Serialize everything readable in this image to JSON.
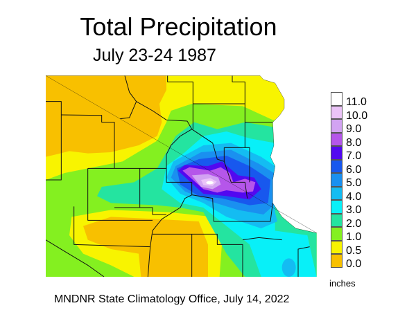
{
  "title": "Total Precipitation",
  "subtitle": "July 23-24 1987",
  "legend": {
    "units": "inches",
    "levels": [
      {
        "label": "11.0",
        "color": "#ffffff"
      },
      {
        "label": "10.0",
        "color": "#ebc3f8"
      },
      {
        "label": "9.0",
        "color": "#d2a3f2"
      },
      {
        "label": "8.0",
        "color": "#b556ea"
      },
      {
        "label": "7.0",
        "color": "#5208f0"
      },
      {
        "label": "6.0",
        "color": "#1858ee"
      },
      {
        "label": "5.0",
        "color": "#1a90f0"
      },
      {
        "label": "4.0",
        "color": "#14bcf2"
      },
      {
        "label": "3.0",
        "color": "#08f0f8"
      },
      {
        "label": "2.0",
        "color": "#24e4a0"
      },
      {
        "label": "1.0",
        "color": "#84f020"
      },
      {
        "label": "0.5",
        "color": "#f8f400"
      },
      {
        "label": "0.0",
        "color": "#f8c000"
      }
    ]
  },
  "footer": "MNDNR State Climatology Office, July 14, 2022"
}
